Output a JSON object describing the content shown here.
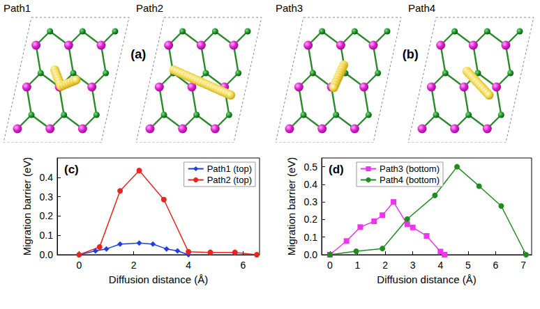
{
  "figure_panels": [
    {
      "label": "(a)",
      "structures": [
        "Path1",
        "Path2"
      ]
    },
    {
      "label": "(b)",
      "structures": [
        "Path3",
        "Path4"
      ]
    }
  ],
  "chart_data": [
    {
      "type": "line",
      "panel_label": "(c)",
      "x_label": "Diffusion distance (Å)",
      "y_label": "Migration barrier (eV)",
      "xlim": [
        -0.8,
        6.6
      ],
      "xticks": [
        0,
        2,
        4,
        6
      ],
      "ylim": [
        0,
        0.5
      ],
      "yticks": [
        {
          "value": 0,
          "label": "0.0"
        },
        0.1,
        0.2,
        0.3,
        0.4
      ],
      "grid": false,
      "legend": "top-right",
      "series": [
        {
          "name": "Path1 (top)",
          "color": "#1f3fe0",
          "marker": "diamond",
          "x": [
            0,
            0.6,
            1.0,
            1.5,
            2.2,
            2.7,
            3.2,
            3.6,
            4.0
          ],
          "values": [
            0,
            0.02,
            0.03,
            0.055,
            0.06,
            0.055,
            0.03,
            0.02,
            0.0
          ]
        },
        {
          "name": "Path2 (top)",
          "color": "#e8251f",
          "marker": "circle",
          "x": [
            0,
            0.75,
            1.5,
            2.2,
            3.1,
            4.0,
            4.8,
            5.7,
            6.5
          ],
          "values": [
            0,
            0.04,
            0.33,
            0.435,
            0.285,
            0.015,
            0.012,
            0.012,
            0.0
          ]
        }
      ]
    },
    {
      "type": "line",
      "panel_label": "(d)",
      "x_label": "Diffusion distance (Å)",
      "y_label": "Migration barrier (eV)",
      "xlim": [
        -0.3,
        7.3
      ],
      "xticks": [
        0,
        1,
        2,
        3,
        4,
        5,
        6,
        7
      ],
      "ylim": [
        0,
        0.55
      ],
      "yticks": [
        {
          "value": 0,
          "label": "0.0"
        },
        0.1,
        0.2,
        0.3,
        0.4,
        0.5
      ],
      "grid": false,
      "legend": "top-left",
      "series": [
        {
          "name": "Path3 (bottom)",
          "color": "#f033f0",
          "marker": "square",
          "x": [
            0,
            0.6,
            1.1,
            1.6,
            1.9,
            2.3,
            2.8,
            3.0,
            3.5,
            4.0,
            4.15
          ],
          "values": [
            0,
            0.078,
            0.157,
            0.19,
            0.225,
            0.3,
            0.173,
            0.155,
            0.107,
            0.018,
            0.0
          ]
        },
        {
          "name": "Path4 (bottom)",
          "color": "#1e8c1e",
          "marker": "circle",
          "x": [
            0,
            0.95,
            1.9,
            2.8,
            3.8,
            4.6,
            5.4,
            6.2,
            7.1
          ],
          "values": [
            0,
            0.02,
            0.035,
            0.203,
            0.337,
            0.5,
            0.39,
            0.277,
            0.0
          ]
        }
      ]
    }
  ]
}
